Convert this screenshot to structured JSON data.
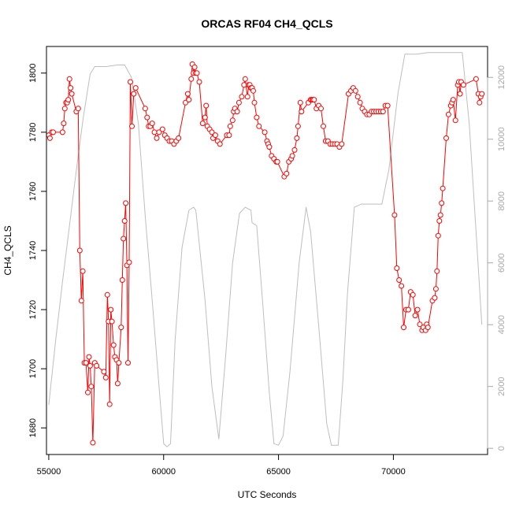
{
  "chart_data": {
    "type": "line",
    "title": "ORCAS RF04 CH4_QCLS",
    "xlabel": "UTC Seconds",
    "ylabel": "CH4_QCLS",
    "xlim": [
      54900,
      74100
    ],
    "ylim": [
      1671,
      1809
    ],
    "y2lim": [
      -200,
      13000
    ],
    "x_ticks": [
      55000,
      60000,
      65000,
      70000
    ],
    "y_ticks": [
      1680,
      1700,
      1720,
      1740,
      1760,
      1780,
      1800
    ],
    "y2_ticks": [
      0,
      2000,
      4000,
      6000,
      8000,
      10000,
      12000
    ],
    "grid": false,
    "colors": {
      "ch4": "#ff0000",
      "altitude": "#bebebe"
    },
    "series": [
      {
        "axis": "left",
        "style": "line-with-open-circles",
        "points": [
          [
            55000,
            1779
          ],
          [
            55050,
            1778
          ],
          [
            55130,
            1780
          ],
          [
            55190,
            1780
          ],
          [
            55600,
            1780
          ],
          [
            55650,
            1783
          ],
          [
            55700,
            1788
          ],
          [
            55750,
            1790
          ],
          [
            55800,
            1790
          ],
          [
            55850,
            1791
          ],
          [
            55900,
            1798
          ],
          [
            55950,
            1795
          ],
          [
            56000,
            1793
          ],
          [
            56200,
            1787
          ],
          [
            56280,
            1788
          ],
          [
            56350,
            1740
          ],
          [
            56420,
            1723
          ],
          [
            56480,
            1733
          ],
          [
            56550,
            1702
          ],
          [
            56620,
            1702
          ],
          [
            56700,
            1692
          ],
          [
            56750,
            1704
          ],
          [
            56800,
            1701
          ],
          [
            56850,
            1694
          ],
          [
            56920,
            1675
          ],
          [
            57000,
            1702
          ],
          [
            57080,
            1701
          ],
          [
            57400,
            1699
          ],
          [
            57480,
            1697
          ],
          [
            57550,
            1725
          ],
          [
            57600,
            1716
          ],
          [
            57650,
            1688
          ],
          [
            57700,
            1720
          ],
          [
            57750,
            1716
          ],
          [
            57820,
            1708
          ],
          [
            57880,
            1704
          ],
          [
            57950,
            1703
          ],
          [
            58000,
            1695
          ],
          [
            58050,
            1702
          ],
          [
            58150,
            1714
          ],
          [
            58200,
            1730
          ],
          [
            58250,
            1744
          ],
          [
            58300,
            1750
          ],
          [
            58350,
            1756
          ],
          [
            58400,
            1735
          ],
          [
            58450,
            1702
          ],
          [
            58500,
            1736
          ],
          [
            58550,
            1797
          ],
          [
            58620,
            1782
          ],
          [
            58700,
            1793
          ],
          [
            58780,
            1795
          ],
          [
            59200,
            1788
          ],
          [
            59280,
            1785
          ],
          [
            59350,
            1782
          ],
          [
            59420,
            1782
          ],
          [
            59500,
            1783
          ],
          [
            59600,
            1780
          ],
          [
            59700,
            1778
          ],
          [
            59800,
            1780
          ],
          [
            59950,
            1781
          ],
          [
            60050,
            1779
          ],
          [
            60150,
            1778
          ],
          [
            60250,
            1777
          ],
          [
            60350,
            1777
          ],
          [
            60450,
            1776
          ],
          [
            60550,
            1777
          ],
          [
            60650,
            1778
          ],
          [
            60950,
            1790
          ],
          [
            61050,
            1793
          ],
          [
            61100,
            1791
          ],
          [
            61200,
            1798
          ],
          [
            61250,
            1803
          ],
          [
            61300,
            1800
          ],
          [
            61350,
            1802
          ],
          [
            61400,
            1800
          ],
          [
            61450,
            1800
          ],
          [
            61550,
            1797
          ],
          [
            61700,
            1783
          ],
          [
            61800,
            1785
          ],
          [
            61850,
            1789
          ],
          [
            61900,
            1782
          ],
          [
            62000,
            1781
          ],
          [
            62100,
            1780
          ],
          [
            62150,
            1778
          ],
          [
            62250,
            1779
          ],
          [
            62350,
            1777
          ],
          [
            62450,
            1776
          ],
          [
            62750,
            1779
          ],
          [
            62850,
            1779
          ],
          [
            62900,
            1782
          ],
          [
            63000,
            1784
          ],
          [
            63050,
            1787
          ],
          [
            63100,
            1788
          ],
          [
            63200,
            1787
          ],
          [
            63280,
            1790
          ],
          [
            63400,
            1792
          ],
          [
            63500,
            1796
          ],
          [
            63550,
            1798
          ],
          [
            63650,
            1792
          ],
          [
            63700,
            1796
          ],
          [
            63750,
            1796
          ],
          [
            63800,
            1795
          ],
          [
            63850,
            1795
          ],
          [
            63900,
            1794
          ],
          [
            63950,
            1790
          ],
          [
            64050,
            1785
          ],
          [
            64150,
            1782
          ],
          [
            64400,
            1780
          ],
          [
            64500,
            1777
          ],
          [
            64550,
            1776
          ],
          [
            64600,
            1775
          ],
          [
            64700,
            1772
          ],
          [
            64800,
            1771
          ],
          [
            64900,
            1770
          ],
          [
            64950,
            1770
          ],
          [
            65250,
            1765
          ],
          [
            65350,
            1766
          ],
          [
            65450,
            1770
          ],
          [
            65550,
            1771
          ],
          [
            65600,
            1772
          ],
          [
            65700,
            1774
          ],
          [
            65800,
            1778
          ],
          [
            65850,
            1782
          ],
          [
            65950,
            1790
          ],
          [
            66000,
            1787
          ],
          [
            66300,
            1790
          ],
          [
            66400,
            1791
          ],
          [
            66450,
            1791
          ],
          [
            66500,
            1791
          ],
          [
            66550,
            1791
          ],
          [
            66650,
            1788
          ],
          [
            66750,
            1789
          ],
          [
            66850,
            1788
          ],
          [
            66950,
            1782
          ],
          [
            67050,
            1777
          ],
          [
            67150,
            1777
          ],
          [
            67250,
            1776
          ],
          [
            67350,
            1776
          ],
          [
            67450,
            1776
          ],
          [
            67550,
            1776
          ],
          [
            67650,
            1775
          ],
          [
            67750,
            1776
          ],
          [
            68050,
            1793
          ],
          [
            68150,
            1794
          ],
          [
            68250,
            1795
          ],
          [
            68350,
            1794
          ],
          [
            68450,
            1792
          ],
          [
            68550,
            1790
          ],
          [
            68650,
            1788
          ],
          [
            68750,
            1787
          ],
          [
            68850,
            1786
          ],
          [
            68950,
            1786
          ],
          [
            69050,
            1787
          ],
          [
            69150,
            1787
          ],
          [
            69250,
            1787
          ],
          [
            69350,
            1787
          ],
          [
            69450,
            1787
          ],
          [
            69550,
            1787
          ],
          [
            69650,
            1789
          ],
          [
            69750,
            1789
          ],
          [
            70050,
            1752
          ],
          [
            70150,
            1734
          ],
          [
            70250,
            1730
          ],
          [
            70350,
            1728
          ],
          [
            70450,
            1714
          ],
          [
            70550,
            1720
          ],
          [
            70650,
            1720
          ],
          [
            70750,
            1726
          ],
          [
            70850,
            1725
          ],
          [
            70950,
            1718
          ],
          [
            71050,
            1720
          ],
          [
            71150,
            1715
          ],
          [
            71250,
            1713
          ],
          [
            71300,
            1714
          ],
          [
            71400,
            1713
          ],
          [
            71450,
            1715
          ],
          [
            71500,
            1714
          ],
          [
            71700,
            1723
          ],
          [
            71800,
            1724
          ],
          [
            71850,
            1727
          ],
          [
            71900,
            1733
          ],
          [
            71950,
            1745
          ],
          [
            72000,
            1750
          ],
          [
            72050,
            1752
          ],
          [
            72100,
            1756
          ],
          [
            72150,
            1761
          ],
          [
            72300,
            1778
          ],
          [
            72400,
            1786
          ],
          [
            72500,
            1789
          ],
          [
            72550,
            1790
          ],
          [
            72600,
            1791
          ],
          [
            72700,
            1784
          ],
          [
            72800,
            1796
          ],
          [
            72850,
            1797
          ],
          [
            72900,
            1793
          ],
          [
            72950,
            1797
          ],
          [
            73050,
            1796
          ],
          [
            73600,
            1798
          ],
          [
            73700,
            1793
          ],
          [
            73750,
            1790
          ],
          [
            73800,
            1792
          ],
          [
            73850,
            1793
          ]
        ]
      },
      {
        "axis": "right",
        "style": "line",
        "points": [
          [
            55000,
            1400
          ],
          [
            55300,
            3500
          ],
          [
            55600,
            5400
          ],
          [
            55900,
            7200
          ],
          [
            56200,
            9000
          ],
          [
            56500,
            10700
          ],
          [
            56800,
            12100
          ],
          [
            57000,
            12350
          ],
          [
            57500,
            12350
          ],
          [
            58000,
            12400
          ],
          [
            58300,
            12400
          ],
          [
            58600,
            12000
          ],
          [
            58900,
            10500
          ],
          [
            59200,
            7500
          ],
          [
            59500,
            4800
          ],
          [
            59800,
            2000
          ],
          [
            60000,
            150
          ],
          [
            60150,
            50
          ],
          [
            60300,
            150
          ],
          [
            60500,
            3500
          ],
          [
            60800,
            6500
          ],
          [
            61100,
            7700
          ],
          [
            61300,
            7800
          ],
          [
            61400,
            7700
          ],
          [
            61800,
            4800
          ],
          [
            62100,
            2000
          ],
          [
            62400,
            300
          ],
          [
            62700,
            3000
          ],
          [
            63000,
            6000
          ],
          [
            63300,
            7600
          ],
          [
            63550,
            7800
          ],
          [
            63800,
            7700
          ],
          [
            63850,
            7300
          ],
          [
            64050,
            7200
          ],
          [
            64300,
            4800
          ],
          [
            64600,
            1800
          ],
          [
            64800,
            150
          ],
          [
            65000,
            100
          ],
          [
            65200,
            400
          ],
          [
            65500,
            2500
          ],
          [
            65900,
            6000
          ],
          [
            66200,
            7800
          ],
          [
            66400,
            7000
          ],
          [
            66800,
            3500
          ],
          [
            67100,
            800
          ],
          [
            67300,
            100
          ],
          [
            67600,
            100
          ],
          [
            67800,
            2200
          ],
          [
            68000,
            5000
          ],
          [
            68300,
            7800
          ],
          [
            68600,
            7900
          ],
          [
            69000,
            7900
          ],
          [
            69500,
            7900
          ],
          [
            69800,
            9000
          ],
          [
            70200,
            11500
          ],
          [
            70500,
            12750
          ],
          [
            71000,
            12750
          ],
          [
            71500,
            12800
          ],
          [
            72000,
            12800
          ],
          [
            72500,
            12800
          ],
          [
            72800,
            12800
          ],
          [
            73000,
            12800
          ],
          [
            73300,
            10500
          ],
          [
            73600,
            7000
          ],
          [
            73850,
            4000
          ]
        ]
      }
    ]
  }
}
